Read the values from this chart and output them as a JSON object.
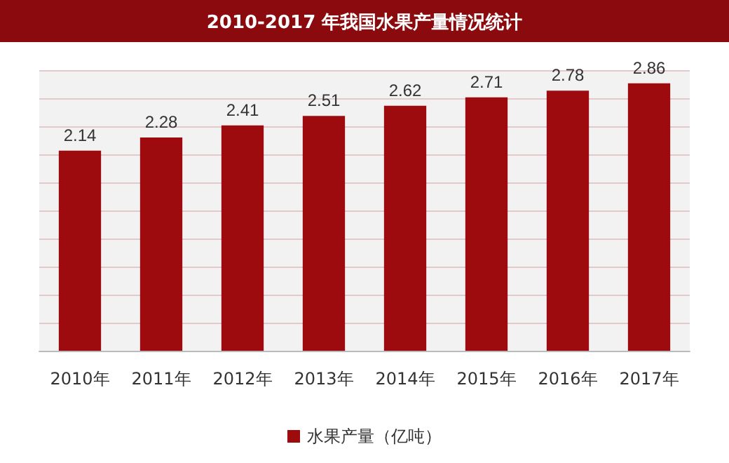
{
  "chart_data": {
    "type": "bar",
    "title": "2010-2017 年我国水果产量情况统计",
    "categories": [
      "2010年",
      "2011年",
      "2012年",
      "2013年",
      "2014年",
      "2015年",
      "2016年",
      "2017年"
    ],
    "series": [
      {
        "name": "水果产量（亿吨）",
        "color": "#9e0b0f",
        "values": [
          2.14,
          2.28,
          2.41,
          2.51,
          2.62,
          2.71,
          2.78,
          2.86
        ]
      }
    ],
    "data_labels": true,
    "grid": "y",
    "legend": "bottom"
  }
}
